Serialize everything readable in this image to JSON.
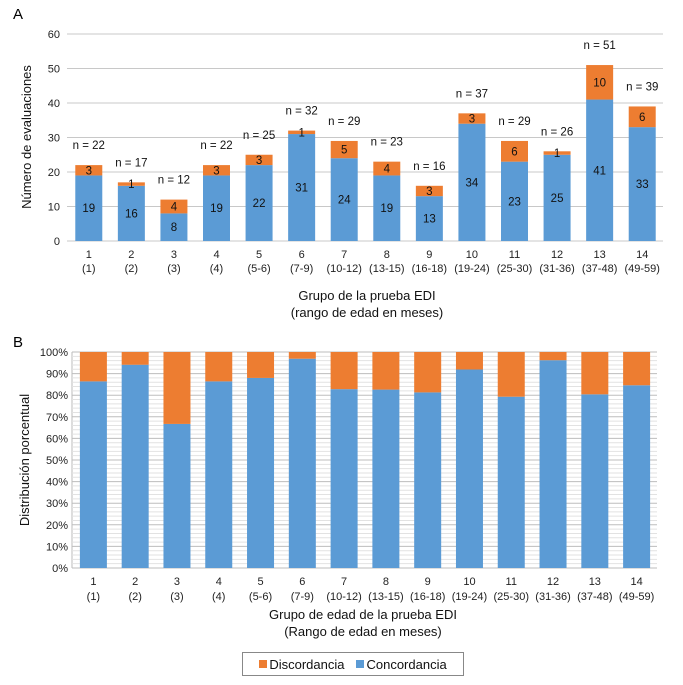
{
  "colors": {
    "concordancia": "#5b9bd5",
    "discordancia": "#ed7d31",
    "grid": "#c8c8c8"
  },
  "chart_data": [
    {
      "panel": "A",
      "type": "bar",
      "stacked": true,
      "ylabel": "Número de evaluaciones",
      "xlabel_lines": [
        "Grupo de la prueba EDI",
        "(rango de edad en meses)"
      ],
      "ylim": [
        0,
        60
      ],
      "yticks": [
        0,
        10,
        20,
        30,
        40,
        50,
        60
      ],
      "grid": true,
      "categories": [
        "1",
        "2",
        "3",
        "4",
        "5",
        "6",
        "7",
        "8",
        "9",
        "10",
        "11",
        "12",
        "13",
        "14"
      ],
      "category_ranges": [
        "(1)",
        "(2)",
        "(3)",
        "(4)",
        "(5-6)",
        "(7-9)",
        "(10-12)",
        "(13-15)",
        "(16-18)",
        "(19-24)",
        "(25-30)",
        "(31-36)",
        "(37-48)",
        "(49-59)"
      ],
      "series": [
        {
          "name": "Concordancia",
          "values": [
            19,
            16,
            8,
            19,
            22,
            31,
            24,
            19,
            13,
            34,
            23,
            25,
            41,
            33
          ]
        },
        {
          "name": "Discordancia",
          "values": [
            3,
            1,
            4,
            3,
            3,
            1,
            5,
            4,
            3,
            3,
            6,
            1,
            10,
            6
          ]
        }
      ],
      "totals_labels": [
        "n = 22",
        "n = 17",
        "n = 12",
        "n = 22",
        "n = 25",
        "n = 32",
        "n = 29",
        "n = 23",
        "n = 16",
        "n = 37",
        "n = 29",
        "n = 26",
        "n = 51",
        "n = 39"
      ]
    },
    {
      "panel": "B",
      "type": "bar",
      "stacked": true,
      "percent": true,
      "ylabel": "Distribución porcentual",
      "xlabel_lines": [
        "Grupo de edad de la prueba EDI",
        "(Rango de edad en meses)"
      ],
      "ylim": [
        0,
        100
      ],
      "yticks": [
        "0%",
        "10%",
        "20%",
        "30%",
        "40%",
        "50%",
        "60%",
        "70%",
        "80%",
        "90%",
        "100%"
      ],
      "grid": true,
      "categories": [
        "1",
        "2",
        "3",
        "4",
        "5",
        "6",
        "7",
        "8",
        "9",
        "10",
        "11",
        "12",
        "13",
        "14"
      ],
      "category_ranges": [
        "(1)",
        "(2)",
        "(3)",
        "(4)",
        "(5-6)",
        "(7-9)",
        "(10-12)",
        "(13-15)",
        "(16-18)",
        "(19-24)",
        "(25-30)",
        "(31-36)",
        "(37-48)",
        "(49-59)"
      ],
      "series": [
        {
          "name": "Concordancia",
          "values": [
            86.4,
            94.1,
            66.7,
            86.4,
            88.0,
            96.9,
            82.8,
            82.6,
            81.3,
            91.9,
            79.3,
            96.2,
            80.4,
            84.6
          ]
        },
        {
          "name": "Discordancia",
          "values": [
            13.6,
            5.9,
            33.3,
            13.6,
            12.0,
            3.1,
            17.2,
            17.4,
            18.7,
            8.1,
            20.7,
            3.8,
            19.6,
            15.4
          ]
        }
      ],
      "legend": {
        "position": "bottom",
        "items": [
          "Discordancia",
          "Concordancia"
        ]
      }
    }
  ]
}
